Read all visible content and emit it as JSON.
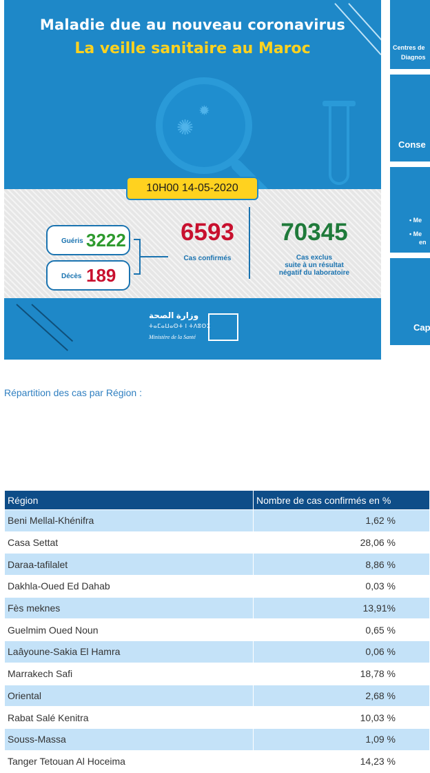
{
  "banner": {
    "title_line1": "Maladie due au nouveau coronavirus",
    "title_line2": "La veille sanitaire au Maroc",
    "datetime": "10H00  14-05-2020",
    "recovered_label": "Guéris",
    "recovered_value": "3222",
    "deaths_label": "Décès",
    "deaths_value": "189",
    "confirmed_value": "6593",
    "confirmed_label": "Cas confirmés",
    "excluded_value": "70345",
    "excluded_label_1": "Cas exclus",
    "excluded_label_2": "suite à un résultat",
    "excluded_label_3": "négatif du laboratoire",
    "ministry_ar": "وزارة الصحة",
    "ministry_tf": "ⵜⴰⵎⴰⵡⴰⵙⵜ ⵏ ⵜⴷⵓⵙⵉ",
    "ministry_fr": "Ministère de la Santé",
    "colors": {
      "primary": "#1e88c8",
      "yellow": "#ffd21f",
      "green": "#2e9a2e",
      "red": "#c8102e",
      "dark_green": "#1f7a3a"
    }
  },
  "side_cards": {
    "card1_line1": "Centres de",
    "card1_line2": "Diagnos",
    "card2": "Conse",
    "card3_line1": "• Me",
    "card3_line2": "• Me",
    "card3_line3": "en",
    "card4": "Cap"
  },
  "region_link": "Répartition des cas par Région :",
  "table": {
    "headers": [
      "Région",
      "Nombre de cas confirmés en %"
    ],
    "rows": [
      {
        "region": "Beni Mellal-Khénifra",
        "pct": "1,62 %"
      },
      {
        "region": "Casa Settat",
        "pct": "28,06 %"
      },
      {
        "region": "Daraa-tafilalet",
        "pct": "8,86 %"
      },
      {
        "region": "Dakhla-Oued Ed Dahab",
        "pct": "0,03 %"
      },
      {
        "region": "Fès meknes",
        "pct": "13,91%"
      },
      {
        "region": "Guelmim Oued Noun",
        "pct": "0,65 %"
      },
      {
        "region": "Laâyoune-Sakia El Hamra",
        "pct": "0,06 %"
      },
      {
        "region": "Marrakech Safi",
        "pct": "18,78 %"
      },
      {
        "region": "Oriental",
        "pct": "2,68 %"
      },
      {
        "region": "Rabat Salé Kenitra",
        "pct": "10,03 %"
      },
      {
        "region": "Souss-Massa",
        "pct": "1,09 %"
      },
      {
        "region": "Tanger Tetouan Al Hoceima",
        "pct": "14,23 %"
      }
    ]
  }
}
